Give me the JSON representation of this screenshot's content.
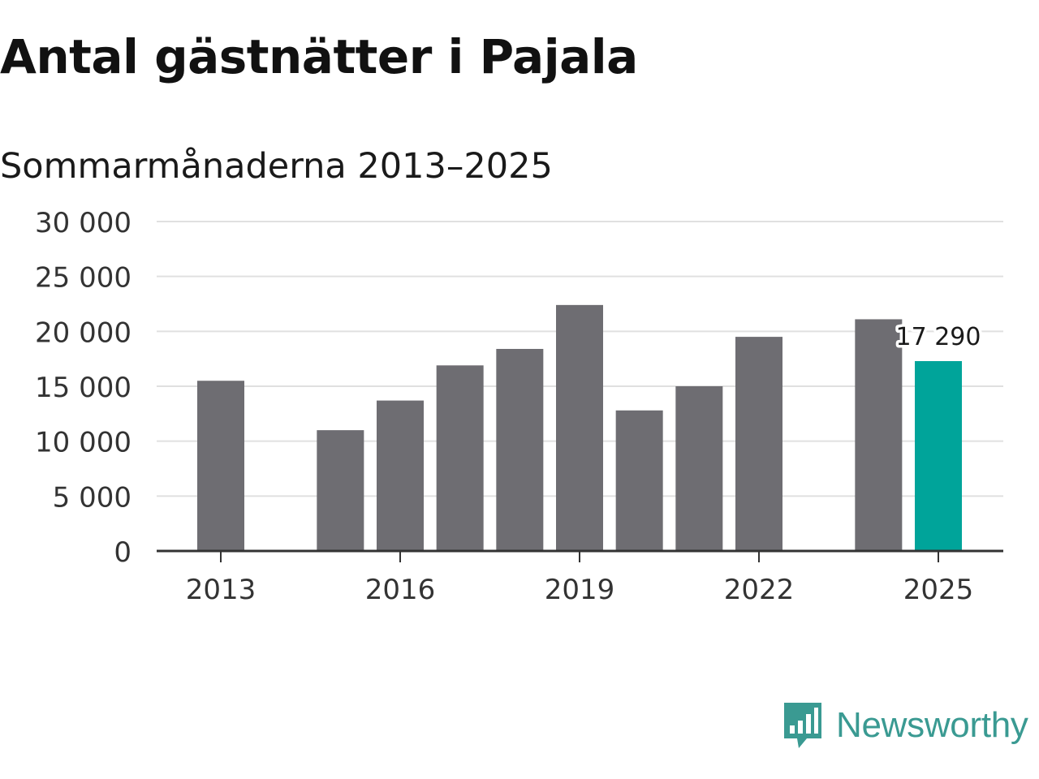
{
  "chart_data": {
    "type": "bar",
    "title": "Antal gästnätter i Pajala",
    "subtitle": "Sommarmånaderna 2013–2025",
    "x": [
      2013,
      2014,
      2015,
      2016,
      2017,
      2018,
      2019,
      2020,
      2021,
      2022,
      2023,
      2024,
      2025
    ],
    "values": [
      15500,
      null,
      11000,
      13700,
      16900,
      18400,
      22400,
      12800,
      15000,
      19500,
      null,
      21100,
      17290
    ],
    "xticks": [
      "2013",
      "2016",
      "2019",
      "2022",
      "2025"
    ],
    "yticks": [
      "0",
      "5 000",
      "10 000",
      "15 000",
      "20 000",
      "25 000",
      "30 000"
    ],
    "ylim": [
      0,
      30000
    ],
    "highlight": {
      "year": 2025,
      "label": "17 290"
    },
    "colors": {
      "bar": "#6e6d72",
      "highlight": "#00a49a",
      "grid": "#e0e0e0",
      "axis": "#333333"
    },
    "grid": true,
    "legend": "none"
  },
  "brand": {
    "name": "Newsworthy",
    "icon": "newsworthy-logo-icon",
    "color": "#3a9a92"
  }
}
